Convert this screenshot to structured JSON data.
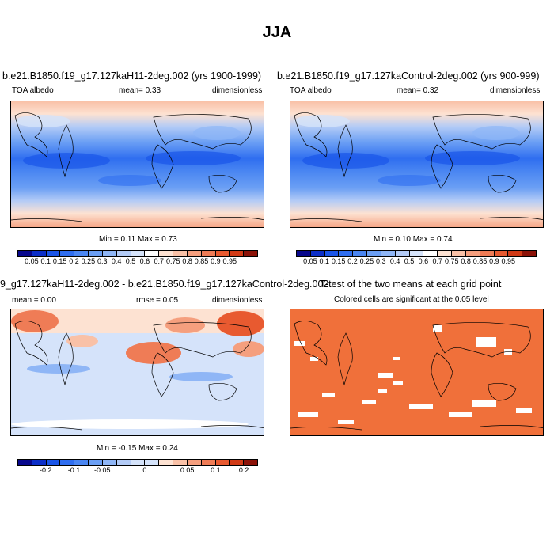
{
  "title": "JJA",
  "panels": [
    {
      "title": "b.e21.B1850.f19_g17.127kaH11-2deg.002 (yrs 1900-1999)",
      "left_label": "TOA albedo",
      "center_label": "mean=  0.33",
      "right_label": "dimensionless",
      "minmax": "Min =  0.11 Max =  0.73"
    },
    {
      "title": "b.e21.B1850.f19_g17.127kaControl-2deg.002 (yrs 900-999)",
      "left_label": "TOA albedo",
      "center_label": "mean=  0.32",
      "right_label": "dimensionless",
      "minmax": "Min =  0.10 Max =  0.74"
    },
    {
      "title": "9_g17.127kaH11-2deg.002 - b.e21.B1850.f19_g17.127kaControl-2deg.002",
      "left_label": "mean =  0.00",
      "center_label": "rmse =  0.05",
      "right_label": "dimensionless",
      "minmax": "Min =  -0.15 Max =  0.24"
    },
    {
      "title": "T-test of the two means at each grid point",
      "subtitle": "Colored cells are significant at the 0.05 level"
    }
  ],
  "colorbar_albedo": {
    "labels": [
      "0.05",
      "0.1",
      "0.15",
      "0.2",
      "0.25",
      "0.3",
      "0.4",
      "0.5",
      "0.6",
      "0.7",
      "0.75",
      "0.8",
      "0.85",
      "0.9",
      "0.95"
    ],
    "colors": [
      "#08088c",
      "#0c2fc8",
      "#1a55e8",
      "#2f6ef0",
      "#4a86f2",
      "#6b9ff4",
      "#8fb6f6",
      "#b3cbf6",
      "#d5e3fa",
      "#ffffff",
      "#fde2d2",
      "#f9c1a7",
      "#f59f7e",
      "#ef7c56",
      "#e85a30",
      "#d13a16",
      "#8c1208"
    ]
  },
  "colorbar_diff": {
    "labels": [
      "-0.2",
      "-0.1",
      "-0.05",
      "0",
      "0.05",
      "0.1",
      "0.2"
    ],
    "colors": [
      "#08088c",
      "#0c2fc8",
      "#1a55e8",
      "#2f6ef0",
      "#4a86f2",
      "#6b9ff4",
      "#8fb6f6",
      "#b3cbf6",
      "#d5e3fa",
      "#d5e3fa",
      "#fde2d2",
      "#f9c1a7",
      "#f59f7e",
      "#ef7c56",
      "#e85a30",
      "#d13a16",
      "#8c1208"
    ]
  },
  "ttest_color": "#f0703a"
}
